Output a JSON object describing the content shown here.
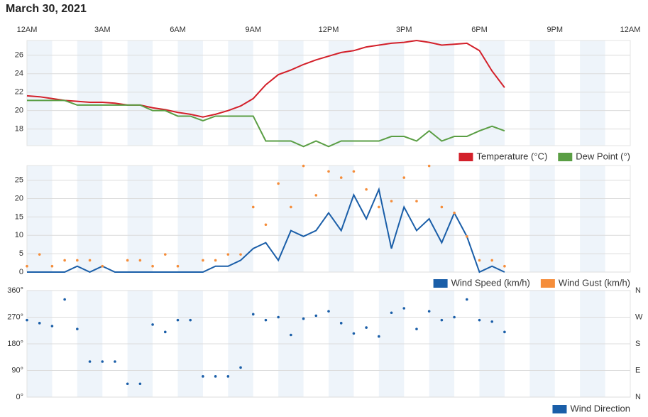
{
  "title": "March 30, 2021",
  "chart_data": [
    {
      "type": "line",
      "xlim": [
        0,
        24
      ],
      "xticks": [
        {
          "value": 0,
          "label": "12AM"
        },
        {
          "value": 3,
          "label": "3AM"
        },
        {
          "value": 6,
          "label": "6AM"
        },
        {
          "value": 9,
          "label": "9AM"
        },
        {
          "value": 12,
          "label": "12PM"
        },
        {
          "value": 15,
          "label": "3PM"
        },
        {
          "value": 18,
          "label": "6PM"
        },
        {
          "value": 21,
          "label": "9PM"
        },
        {
          "value": 24,
          "label": "12AM"
        }
      ],
      "ylim": [
        16.2,
        27.6
      ],
      "yticks": [
        18,
        20,
        22,
        24,
        26
      ],
      "grid": true,
      "x": [
        0,
        0.5,
        1,
        1.5,
        2,
        2.5,
        3,
        3.5,
        4,
        4.5,
        5,
        5.5,
        6,
        6.5,
        7,
        7.5,
        8,
        8.5,
        9,
        9.5,
        10,
        10.5,
        11,
        11.5,
        12,
        12.5,
        13,
        13.5,
        14,
        14.5,
        15,
        15.5,
        16,
        16.5,
        17,
        17.5,
        18,
        18.5,
        19
      ],
      "series": [
        {
          "name": "Temperature (°C)",
          "color": "#d3202a",
          "type": "line",
          "values": [
            21.6,
            21.5,
            21.3,
            21.1,
            21.0,
            20.9,
            20.9,
            20.8,
            20.6,
            20.6,
            20.3,
            20.1,
            19.8,
            19.6,
            19.3,
            19.6,
            20.0,
            20.5,
            21.3,
            22.8,
            23.9,
            24.4,
            25.0,
            25.5,
            25.9,
            26.3,
            26.5,
            26.9,
            27.1,
            27.3,
            27.4,
            27.6,
            27.4,
            27.1,
            27.2,
            27.3,
            26.5,
            24.3,
            22.5
          ]
        },
        {
          "name": "Dew Point (°)",
          "color": "#5a9e44",
          "type": "line",
          "values": [
            21.1,
            21.1,
            21.1,
            21.1,
            20.6,
            20.6,
            20.6,
            20.6,
            20.6,
            20.6,
            20.0,
            20.0,
            19.4,
            19.4,
            18.9,
            19.4,
            19.4,
            19.4,
            19.4,
            16.7,
            16.7,
            16.7,
            16.1,
            16.7,
            16.1,
            16.7,
            16.7,
            16.7,
            16.7,
            17.2,
            17.2,
            16.7,
            17.8,
            16.7,
            17.2,
            17.2,
            17.8,
            18.3,
            17.8
          ]
        }
      ]
    },
    {
      "type": "line",
      "xlim": [
        0,
        24
      ],
      "ylim": [
        0,
        29
      ],
      "yticks": [
        0,
        5,
        10,
        15,
        20,
        25
      ],
      "grid": true,
      "x": [
        0,
        0.5,
        1,
        1.5,
        2,
        2.5,
        3,
        3.5,
        4,
        4.5,
        5,
        5.5,
        6,
        6.5,
        7,
        7.5,
        8,
        8.5,
        9,
        9.5,
        10,
        10.5,
        11,
        11.5,
        12,
        12.5,
        13,
        13.5,
        14,
        14.5,
        15,
        15.5,
        16,
        16.5,
        17,
        17.5,
        18,
        18.5,
        19
      ],
      "series": [
        {
          "name": "Wind Speed (km/h)",
          "color": "#1a5ea8",
          "type": "line",
          "values": [
            0,
            0,
            0,
            0,
            1.6,
            0,
            1.6,
            0,
            0,
            0,
            0,
            0,
            0,
            0,
            0,
            1.6,
            1.6,
            3.2,
            6.4,
            8.0,
            3.2,
            11.3,
            9.7,
            11.3,
            16.1,
            11.3,
            21,
            14.5,
            22.5,
            6.4,
            17.7,
            11.3,
            14.5,
            8.0,
            16.1,
            9.7,
            0,
            1.6,
            0
          ]
        },
        {
          "name": "Wind Gust (km/h)",
          "color": "#f58d3a",
          "type": "scatter",
          "values": [
            1.6,
            4.8,
            1.6,
            3.2,
            3.2,
            3.2,
            1.6,
            null,
            3.2,
            3.2,
            1.6,
            4.8,
            1.6,
            null,
            3.2,
            3.2,
            4.8,
            4.8,
            17.7,
            12.9,
            24.1,
            17.7,
            28.9,
            20.9,
            27.4,
            25.7,
            27.4,
            22.5,
            17.7,
            19.3,
            25.7,
            19.3,
            28.9,
            17.7,
            16.1,
            9.7,
            3.2,
            3.2,
            1.6
          ]
        }
      ]
    },
    {
      "type": "scatter",
      "xlim": [
        0,
        24
      ],
      "ylim": [
        0,
        360
      ],
      "yticks": [
        {
          "value": 0,
          "label": "0°"
        },
        {
          "value": 90,
          "label": "90°"
        },
        {
          "value": 180,
          "label": "180°"
        },
        {
          "value": 270,
          "label": "270°"
        },
        {
          "value": 360,
          "label": "360°"
        }
      ],
      "y2lim": [
        0,
        360
      ],
      "y2ticks": [
        {
          "value": 0,
          "label": "N"
        },
        {
          "value": 90,
          "label": "E"
        },
        {
          "value": 180,
          "label": "S"
        },
        {
          "value": 270,
          "label": "W"
        },
        {
          "value": 360,
          "label": "N"
        }
      ],
      "grid": true,
      "x": [
        0,
        0.5,
        1,
        1.5,
        2,
        2.5,
        3,
        3.5,
        4,
        4.5,
        5,
        5.5,
        6,
        6.5,
        7,
        7.5,
        8,
        8.5,
        9,
        9.5,
        10,
        10.5,
        11,
        11.5,
        12,
        12.5,
        13,
        13.5,
        14,
        14.5,
        15,
        15.5,
        16,
        16.5,
        17,
        17.5,
        18,
        18.5,
        19
      ],
      "series": [
        {
          "name": "Wind Direction",
          "color": "#1a5ea8",
          "type": "scatter",
          "values": [
            260,
            250,
            240,
            330,
            230,
            120,
            120,
            120,
            45,
            45,
            245,
            220,
            260,
            260,
            70,
            70,
            70,
            100,
            280,
            260,
            270,
            210,
            265,
            275,
            290,
            250,
            215,
            235,
            205,
            285,
            300,
            230,
            290,
            260,
            270,
            330,
            260,
            255,
            220
          ]
        }
      ]
    }
  ]
}
